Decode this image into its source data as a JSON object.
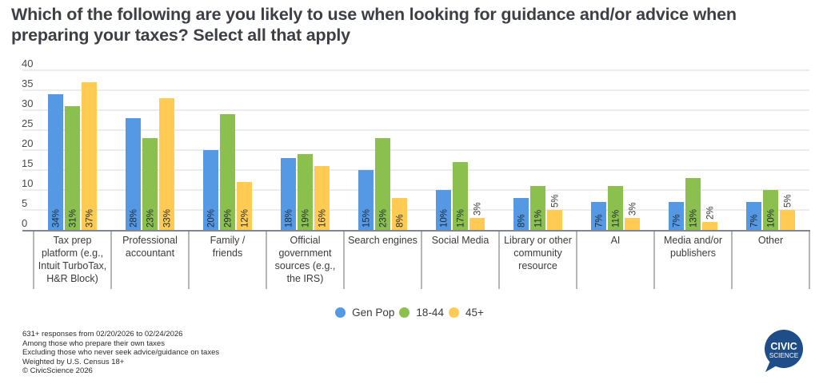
{
  "title": "Which of the following are you likely to use when looking for guidance and/or advice when preparing your taxes? Select all that apply",
  "chart_data": {
    "type": "bar",
    "title": "Which of the following are you likely to use when looking for guidance and/or advice when preparing your taxes? Select all that apply",
    "xlabel": "",
    "ylabel": "",
    "ylim": [
      0,
      40
    ],
    "yticks": [
      0,
      5,
      10,
      15,
      20,
      25,
      30,
      35,
      40
    ],
    "grid": true,
    "legend_position": "bottom",
    "categories": [
      "Tax prep platform (e.g., Intuit TurboTax, H&R Block)",
      "Professional accountant",
      "Family / friends",
      "Official government sources (e.g., the IRS)",
      "Search engines",
      "Social Media",
      "Library or other community resource",
      "AI",
      "Media and/or publishers",
      "Other"
    ],
    "category_label_lines": [
      [
        "Tax prep",
        "platform (e.g.,",
        "Intuit TurboTax,",
        "H&R Block)"
      ],
      [
        "Professional",
        "accountant"
      ],
      [
        "Family /",
        "friends"
      ],
      [
        "Official",
        "government",
        "sources (e.g.,",
        "the IRS)"
      ],
      [
        "Search engines"
      ],
      [
        "Social Media"
      ],
      [
        "Library or other",
        "community",
        "resource"
      ],
      [
        "AI"
      ],
      [
        "Media and/or",
        "publishers"
      ],
      [
        "Other"
      ]
    ],
    "series": [
      {
        "name": "Gen Pop",
        "color": "#5599e4",
        "values": [
          34,
          28,
          20,
          18,
          15,
          10,
          8,
          7,
          7,
          7
        ]
      },
      {
        "name": "18-44",
        "color": "#8bc04f",
        "values": [
          31,
          23,
          29,
          19,
          23,
          17,
          11,
          11,
          13,
          10
        ]
      },
      {
        "name": "45+",
        "color": "#ffcb52",
        "values": [
          37,
          33,
          12,
          16,
          8,
          3,
          5,
          3,
          2,
          5
        ]
      }
    ],
    "value_suffix": "%"
  },
  "legend": [
    {
      "label": "Gen Pop",
      "color": "#5599e4"
    },
    {
      "label": "18-44",
      "color": "#8bc04f"
    },
    {
      "label": "45+",
      "color": "#ffcb52"
    }
  ],
  "notes": [
    "631+ responses from 02/20/2026 to 02/24/2026",
    "Among those who prepare their own taxes",
    "Excluding those who never seek advice/guidance on taxes",
    "Weighted by U.S. Census 18+",
    "© CivicScience 2026"
  ],
  "logo": {
    "line1": "CIVIC",
    "line2": "SCIENCE",
    "color": "#1e4d87"
  }
}
